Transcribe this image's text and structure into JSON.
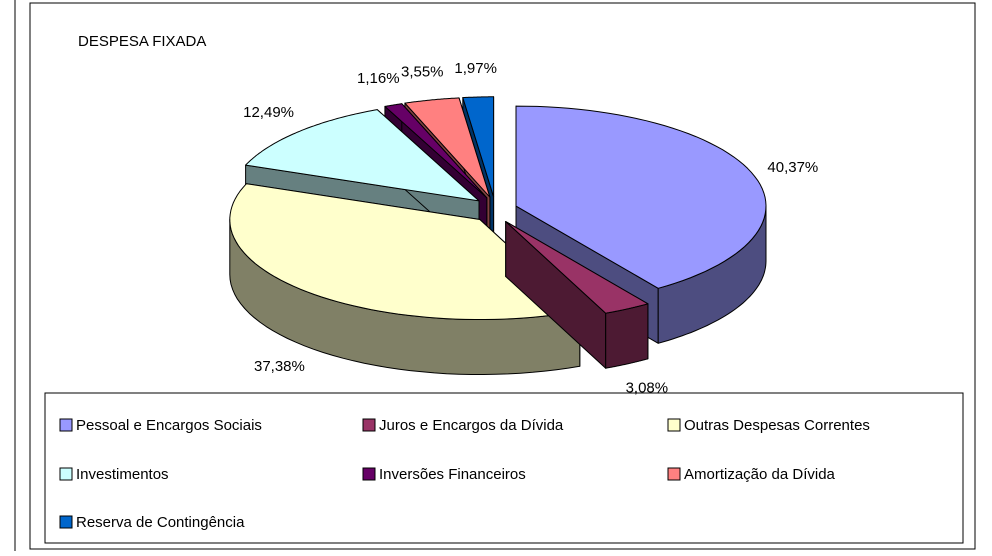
{
  "chart_data": {
    "type": "pie3d",
    "title": "DESPESA FIXADA",
    "categories": [
      "Pessoal e Encargos Sociais",
      "Juros e Encargos da Dívida",
      "Outras Despesas Correntes",
      "Investimentos",
      "Inversões Financeiros",
      "Amortização da Dívida",
      "Reserva de Contingência"
    ],
    "values": [
      40.37,
      3.08,
      37.38,
      12.49,
      1.16,
      3.55,
      1.97
    ],
    "value_labels": [
      "40,37%",
      "3,08%",
      "37,38%",
      "12,49%",
      "1,16%",
      "3,55%",
      "1,97%"
    ],
    "colors": [
      "#9999ff",
      "#993366",
      "#ffffcc",
      "#ccffff",
      "#660066",
      "#ff8080",
      "#0066cc"
    ],
    "legend": "bottom"
  }
}
